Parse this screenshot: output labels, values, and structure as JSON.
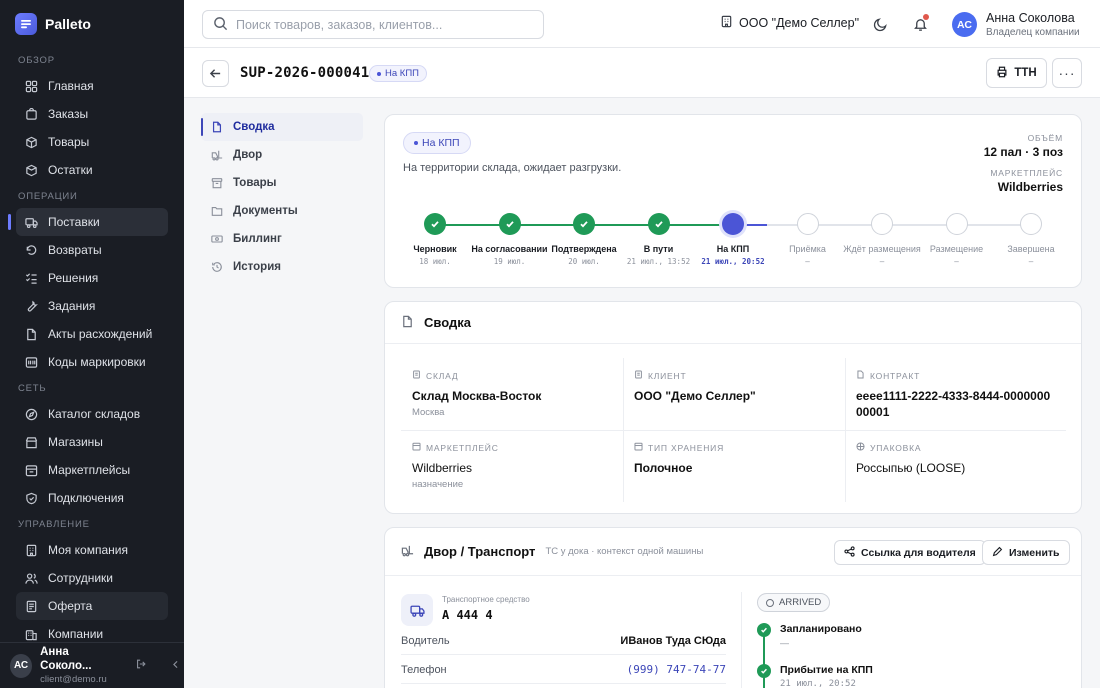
{
  "app": {
    "name": "Palleto"
  },
  "sidebar": {
    "sections": [
      {
        "title": "Обзор",
        "items": [
          {
            "label": "Главная",
            "icon": "grid-icon"
          },
          {
            "label": "Заказы",
            "icon": "cart-icon"
          },
          {
            "label": "Товары",
            "icon": "box-icon"
          },
          {
            "label": "Остатки",
            "icon": "stack-icon"
          }
        ]
      },
      {
        "title": "Операции",
        "items": [
          {
            "label": "Поставки",
            "icon": "truck-icon",
            "active": true
          },
          {
            "label": "Возвраты",
            "icon": "return-icon"
          },
          {
            "label": "Решения",
            "icon": "checklist-icon"
          },
          {
            "label": "Задания",
            "icon": "wrench-icon"
          },
          {
            "label": "Акты расхождений",
            "icon": "file-icon"
          },
          {
            "label": "Коды маркировки",
            "icon": "barcode-icon"
          }
        ]
      },
      {
        "title": "Сеть",
        "items": [
          {
            "label": "Каталог складов",
            "icon": "compass-icon"
          },
          {
            "label": "Магазины",
            "icon": "store-icon"
          },
          {
            "label": "Маркетплейсы",
            "icon": "market-icon"
          },
          {
            "label": "Подключения",
            "icon": "shield-icon"
          }
        ]
      },
      {
        "title": "Управление",
        "items": [
          {
            "label": "Моя компания",
            "icon": "building-icon"
          },
          {
            "label": "Сотрудники",
            "icon": "users-icon"
          },
          {
            "label": "Оферта",
            "icon": "document-icon"
          },
          {
            "label": "Компании",
            "icon": "buildings-icon"
          }
        ]
      }
    ],
    "user": {
      "initials": "АС",
      "name": "Анна Соколо...",
      "email": "client@demo.ru"
    }
  },
  "header": {
    "search_placeholder": "Поиск товаров, заказов, клиентов...",
    "company": "ООО \"Демо Селлер\"",
    "user": {
      "initials": "АС",
      "name": "Анна Соколова",
      "role": "Владелец компании"
    }
  },
  "page": {
    "id": "SUP-2026-000041",
    "status_badge": "На КПП",
    "ttn_label": "ТТН"
  },
  "subnav": [
    {
      "label": "Сводка",
      "icon": "document-icon",
      "active": true
    },
    {
      "label": "Двор",
      "icon": "forklift-icon"
    },
    {
      "label": "Товары",
      "icon": "archive-icon"
    },
    {
      "label": "Документы",
      "icon": "folder-icon"
    },
    {
      "label": "Биллинг",
      "icon": "money-icon"
    },
    {
      "label": "История",
      "icon": "history-icon"
    }
  ],
  "status": {
    "badge": "На КПП",
    "description": "На территории склада, ожидает разгрузки.",
    "volume_label": "Объём",
    "volume_value": "12 пал · 3 поз",
    "marketplace_label": "Маркетплейс",
    "marketplace_value": "Wildberries",
    "steps": [
      {
        "label": "Черновик",
        "date": "18 июл.",
        "state": "done"
      },
      {
        "label": "На согласовании",
        "date": "19 июл.",
        "state": "done"
      },
      {
        "label": "Подтверждена",
        "date": "20 июл.",
        "state": "done"
      },
      {
        "label": "В пути",
        "date": "21 июл., 13:52",
        "state": "done"
      },
      {
        "label": "На КПП",
        "date": "21 июл., 20:52",
        "state": "current"
      },
      {
        "label": "Приёмка",
        "date": "—",
        "state": "todo"
      },
      {
        "label": "Ждёт размещения",
        "date": "—",
        "state": "todo"
      },
      {
        "label": "Размещение",
        "date": "—",
        "state": "todo"
      },
      {
        "label": "Завершена",
        "date": "—",
        "state": "todo"
      }
    ]
  },
  "summary": {
    "title": "Сводка",
    "cells": [
      {
        "label": "Склад",
        "value": "Склад Москва-Восток",
        "sub": "Москва",
        "icon": "building-icon"
      },
      {
        "label": "Клиент",
        "value": "ООО \"Демо Селлер\"",
        "sub": "",
        "icon": "building-icon"
      },
      {
        "label": "Контракт",
        "value": "eeee1111-2222-4333-8444-000000000001",
        "sub": "",
        "icon": "file-icon"
      },
      {
        "label": "Маркетплейс",
        "value": "Wildberries",
        "sub": "назначение",
        "icon": "store-icon"
      },
      {
        "label": "Тип хранения",
        "value": "Полочное",
        "sub": "",
        "icon": "store-icon"
      },
      {
        "label": "Упаковка",
        "value": "Россыпью (LOOSE)",
        "sub": "",
        "icon": "package-icon"
      }
    ]
  },
  "yard": {
    "title": "Двор / Транспорт",
    "subtitle": "ТС у дока · контекст одной машины",
    "driver_link_label": "Ссылка для водителя",
    "edit_label": "Изменить",
    "vehicle_label": "Транспортное средство",
    "vehicle_plate": "А 444 4",
    "rows": [
      {
        "label": "Водитель",
        "value": "ИВанов Туда СЮда"
      },
      {
        "label": "Телефон",
        "value": "(999) 747-74-77"
      }
    ],
    "arrival_status": "ARRIVED",
    "timeline": [
      {
        "title": "Запланировано",
        "sub": "—"
      },
      {
        "title": "Прибытие на КПП",
        "sub": "21 июл., 20:52"
      }
    ]
  },
  "colors": {
    "accent": "#4b55d6",
    "success": "#1f9a57",
    "sidebar": "#1a1d24"
  }
}
